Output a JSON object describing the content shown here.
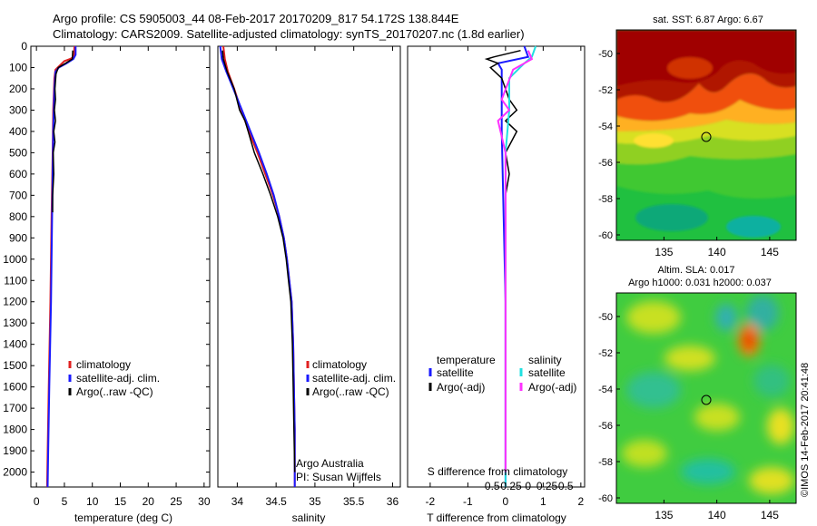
{
  "header": {
    "line1": "Argo profile: CS 5905003_44 08-Feb-2017 20170209_817 54.172S 138.844E",
    "line2": "Climatology: CARS2009. Satellite-adjusted climatology: synTS_20170207.nc (1.8d earlier)"
  },
  "footer": {
    "timestamp": "©IMOS 14-Feb-2017 20:41:48",
    "provider": "Argo Australia",
    "pi": "PI: Susan Wijffels"
  },
  "colors": {
    "climatology": "#e02020",
    "satellite": "#1a1aff",
    "argo": "#000000",
    "sal_satellite": "#20e0e0",
    "sal_argo": "#ff30ff"
  },
  "chart_data": [
    {
      "type": "line",
      "id": "temperature",
      "xlabel": "temperature (deg C)",
      "ylabel": "",
      "xlim": [
        -1,
        31
      ],
      "ylim": [
        2070,
        0
      ],
      "xticks": [
        0,
        5,
        10,
        15,
        20,
        25,
        30
      ],
      "yticks": [
        0,
        100,
        200,
        300,
        400,
        500,
        600,
        700,
        800,
        900,
        1000,
        1100,
        1200,
        1300,
        1400,
        1500,
        1600,
        1700,
        1800,
        1900,
        2000
      ],
      "legend": [
        "climatology",
        "satellite-adj. clim.",
        "Argo(..raw -QC)"
      ],
      "series": [
        {
          "name": "climatology",
          "color_key": "climatology",
          "points": [
            [
              6.8,
              0
            ],
            [
              6.7,
              50
            ],
            [
              6.0,
              60
            ],
            [
              5.0,
              70
            ],
            [
              4.2,
              90
            ],
            [
              3.4,
              110
            ],
            [
              3.2,
              150
            ],
            [
              3.0,
              300
            ],
            [
              2.9,
              500
            ],
            [
              2.7,
              800
            ],
            [
              2.5,
              1200
            ],
            [
              2.2,
              1600
            ],
            [
              2.0,
              1900
            ],
            [
              1.9,
              2070
            ]
          ]
        },
        {
          "name": "satellite-adj. clim.",
          "color_key": "satellite",
          "points": [
            [
              7.0,
              0
            ],
            [
              7.0,
              40
            ],
            [
              6.6,
              60
            ],
            [
              5.4,
              80
            ],
            [
              4.0,
              100
            ],
            [
              3.4,
              120
            ],
            [
              3.2,
              200
            ],
            [
              3.0,
              400
            ],
            [
              2.8,
              800
            ],
            [
              2.6,
              1200
            ],
            [
              2.3,
              1600
            ],
            [
              2.1,
              1900
            ],
            [
              2.0,
              2070
            ]
          ]
        },
        {
          "name": "Argo(..raw -QC)",
          "color_key": "argo",
          "points": [
            [
              6.5,
              20
            ],
            [
              6.4,
              60
            ],
            [
              5.2,
              80
            ],
            [
              3.9,
              100
            ],
            [
              3.5,
              130
            ],
            [
              3.3,
              200
            ],
            [
              3.4,
              250
            ],
            [
              3.2,
              300
            ],
            [
              3.4,
              350
            ],
            [
              3.1,
              400
            ],
            [
              3.3,
              450
            ],
            [
              3.0,
              500
            ],
            [
              3.1,
              600
            ],
            [
              2.9,
              700
            ],
            [
              2.9,
              780
            ]
          ]
        }
      ]
    },
    {
      "type": "line",
      "id": "salinity",
      "xlabel": "salinity",
      "ylabel": "",
      "xlim": [
        33.75,
        36.1
      ],
      "ylim": [
        2070,
        0
      ],
      "xticks": [
        34,
        34.5,
        35,
        35.5,
        36
      ],
      "legend": [
        "climatology",
        "satellite-adj. clim.",
        "Argo(..raw -QC)"
      ],
      "series": [
        {
          "name": "climatology",
          "color_key": "climatology",
          "points": [
            [
              33.82,
              0
            ],
            [
              33.84,
              60
            ],
            [
              33.88,
              120
            ],
            [
              33.96,
              200
            ],
            [
              34.05,
              300
            ],
            [
              34.15,
              400
            ],
            [
              34.26,
              500
            ],
            [
              34.36,
              600
            ],
            [
              34.46,
              700
            ],
            [
              34.54,
              800
            ],
            [
              34.6,
              900
            ],
            [
              34.64,
              1000
            ],
            [
              34.67,
              1100
            ],
            [
              34.7,
              1200
            ],
            [
              34.72,
              1400
            ],
            [
              34.73,
              1600
            ],
            [
              34.74,
              1800
            ],
            [
              34.74,
              2070
            ]
          ]
        },
        {
          "name": "satellite-adj. clim.",
          "color_key": "satellite",
          "points": [
            [
              33.78,
              0
            ],
            [
              33.8,
              60
            ],
            [
              33.86,
              120
            ],
            [
              33.95,
              200
            ],
            [
              34.06,
              300
            ],
            [
              34.17,
              400
            ],
            [
              34.28,
              500
            ],
            [
              34.38,
              600
            ],
            [
              34.47,
              700
            ],
            [
              34.54,
              800
            ],
            [
              34.6,
              900
            ],
            [
              34.64,
              1000
            ],
            [
              34.67,
              1100
            ],
            [
              34.7,
              1200
            ],
            [
              34.72,
              1400
            ],
            [
              34.73,
              1600
            ],
            [
              34.74,
              1800
            ],
            [
              34.74,
              2070
            ]
          ]
        },
        {
          "name": "Argo(..raw -QC)",
          "color_key": "argo",
          "points": [
            [
              33.81,
              20
            ],
            [
              33.82,
              60
            ],
            [
              33.87,
              120
            ],
            [
              33.96,
              200
            ],
            [
              34.03,
              300
            ],
            [
              34.1,
              350
            ],
            [
              34.14,
              400
            ],
            [
              34.22,
              500
            ],
            [
              34.33,
              600
            ],
            [
              34.43,
              700
            ],
            [
              34.52,
              800
            ],
            [
              34.59,
              900
            ],
            [
              34.63,
              1000
            ],
            [
              34.66,
              1100
            ],
            [
              34.69,
              1200
            ],
            [
              34.71,
              1400
            ],
            [
              34.72,
              1600
            ],
            [
              34.73,
              1800
            ],
            [
              34.74,
              2000
            ]
          ]
        }
      ]
    },
    {
      "type": "line",
      "id": "difference",
      "xlabel": "T difference from climatology",
      "top_label": "S difference from climatology",
      "xlim": [
        -2.6,
        2.1
      ],
      "ylim": [
        2070,
        0
      ],
      "xticks": [
        -2,
        -1,
        0,
        1,
        2
      ],
      "top_ticks": [
        "-0.5",
        "-0.25",
        "0",
        "0.25",
        "0.5"
      ],
      "top_tick_positions": [
        -2,
        -1,
        0,
        1,
        2
      ],
      "legend_temperature_title": "temperature",
      "legend_salinity_title": "salinity",
      "legend_temperature": [
        "satellite",
        "Argo(-adj)"
      ],
      "legend_salinity": [
        "satellite",
        "Argo(-adj)"
      ],
      "series": [
        {
          "name": "satellite",
          "color_key": "satellite",
          "points": [
            [
              0.5,
              0
            ],
            [
              0.6,
              50
            ],
            [
              -0.2,
              80
            ],
            [
              -0.1,
              110
            ],
            [
              -0.1,
              200
            ],
            [
              -0.1,
              400
            ],
            [
              -0.05,
              800
            ],
            [
              0.0,
              1200
            ],
            [
              0.0,
              1600
            ],
            [
              0.0,
              2070
            ]
          ]
        },
        {
          "name": "Argo(-adj)",
          "color_key": "argo",
          "points": [
            [
              0.4,
              20
            ],
            [
              -0.3,
              50
            ],
            [
              -0.5,
              60
            ],
            [
              -0.2,
              80
            ],
            [
              -0.4,
              100
            ],
            [
              -0.1,
              150
            ],
            [
              0.1,
              250
            ],
            [
              0.3,
              300
            ],
            [
              0.0,
              350
            ],
            [
              0.3,
              400
            ],
            [
              0.0,
              500
            ],
            [
              0.1,
              600
            ],
            [
              0.0,
              700
            ]
          ]
        },
        {
          "name": "satellite (S)",
          "color_key": "sal_satellite",
          "points": [
            [
              0.8,
              0
            ],
            [
              0.7,
              50
            ],
            [
              0.5,
              80
            ],
            [
              0.1,
              150
            ],
            [
              0.1,
              300
            ],
            [
              0.0,
              500
            ],
            [
              0.0,
              1000
            ],
            [
              0.0,
              2070
            ]
          ]
        },
        {
          "name": "Argo(-adj) (S)",
          "color_key": "sal_argo",
          "points": [
            [
              0.6,
              20
            ],
            [
              0.7,
              60
            ],
            [
              0.2,
              110
            ],
            [
              -0.1,
              250
            ],
            [
              0.1,
              300
            ],
            [
              -0.2,
              350
            ],
            [
              0.0,
              500
            ],
            [
              0.0,
              800
            ],
            [
              0.0,
              1200
            ],
            [
              0.0,
              2000
            ]
          ]
        }
      ]
    },
    {
      "type": "heatmap",
      "id": "sst_map",
      "title": "sat. SST: 6.87 Argo: 6.67",
      "xlim": [
        130.5,
        147.5
      ],
      "ylim": [
        -60.3,
        -48.7
      ],
      "xticks": [
        135,
        140,
        145
      ],
      "yticks": [
        -50,
        -52,
        -54,
        -56,
        -58,
        -60
      ],
      "argo_position": {
        "lon": 138.844,
        "lat": -54.172
      }
    },
    {
      "type": "heatmap",
      "id": "sla_map",
      "title_line1": "Altim. SLA: 0.017",
      "title_line2": "Argo h1000: 0.031 h2000: 0.037",
      "xlim": [
        130.5,
        147.5
      ],
      "ylim": [
        -60.3,
        -48.7
      ],
      "xticks": [
        135,
        140,
        145
      ],
      "yticks": [
        -50,
        -52,
        -54,
        -56,
        -58,
        -60
      ],
      "argo_position": {
        "lon": 138.844,
        "lat": -54.172
      }
    }
  ]
}
